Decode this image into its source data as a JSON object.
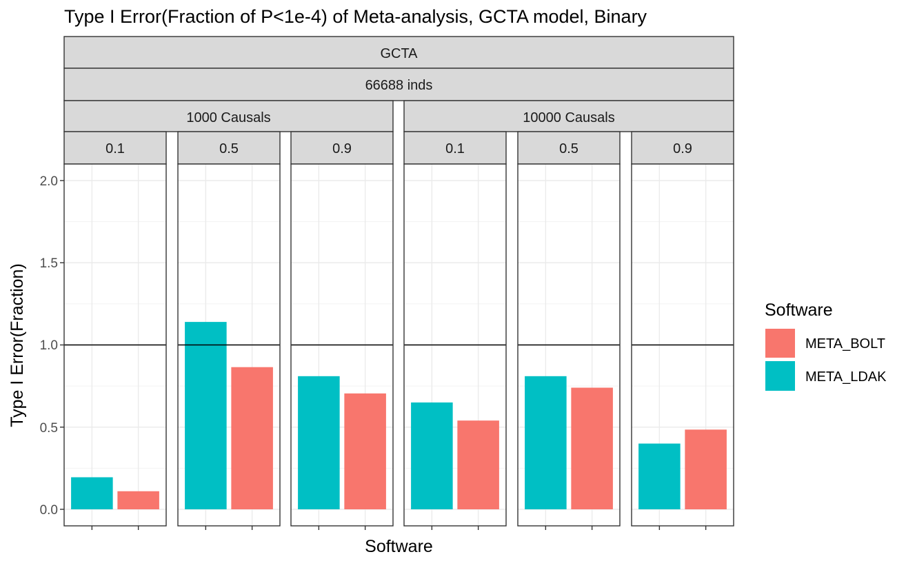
{
  "chart_data": {
    "type": "bar",
    "title": "Type I Error(Fraction of P<1e-4) of Meta-analysis, GCTA model, Binary",
    "xlabel": "Software",
    "ylabel": "Type I Error(Fraction)",
    "ylim": [
      0,
      2.1
    ],
    "yticks": [
      "0.0",
      "0.5",
      "1.0",
      "1.5",
      "2.0"
    ],
    "reference_line": 1.0,
    "grid": true,
    "legend": {
      "title": "Software",
      "placement": "right",
      "entries": [
        {
          "name": "META_BOLT",
          "color": "#F8766D"
        },
        {
          "name": "META_LDAK",
          "color": "#00BFC4"
        }
      ]
    },
    "strips": {
      "model": "GCTA",
      "inds": "66688 inds",
      "causal_groups": [
        "1000 Causals",
        "10000 Causals"
      ]
    },
    "panels": [
      {
        "causals": "1000 Causals",
        "h2": "0.1",
        "META_LDAK": 0.195,
        "META_BOLT": 0.11
      },
      {
        "causals": "1000 Causals",
        "h2": "0.5",
        "META_LDAK": 1.14,
        "META_BOLT": 0.865
      },
      {
        "causals": "1000 Causals",
        "h2": "0.9",
        "META_LDAK": 0.81,
        "META_BOLT": 0.705
      },
      {
        "causals": "10000 Causals",
        "h2": "0.1",
        "META_LDAK": 0.65,
        "META_BOLT": 0.54
      },
      {
        "causals": "10000 Causals",
        "h2": "0.5",
        "META_LDAK": 0.81,
        "META_BOLT": 0.74
      },
      {
        "causals": "10000 Causals",
        "h2": "0.9",
        "META_LDAK": 0.4,
        "META_BOLT": 0.485
      }
    ],
    "bar_order": [
      "META_LDAK",
      "META_BOLT"
    ]
  }
}
